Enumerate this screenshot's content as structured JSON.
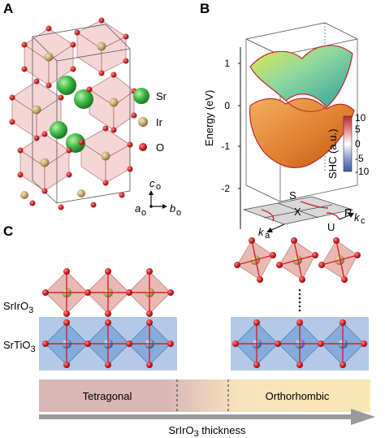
{
  "panels": {
    "a": {
      "letter": "A",
      "legend": [
        {
          "symbol": "Sr",
          "color": "#3fb845"
        },
        {
          "symbol": "Ir",
          "color": "#c8a86a"
        },
        {
          "symbol": "O",
          "color": "#d2232a"
        }
      ],
      "axes": {
        "c": "c",
        "a": "a",
        "b": "b",
        "sub": "o"
      }
    },
    "b": {
      "letter": "B",
      "ylabel": "Energy (eV)",
      "yticks": [
        "1",
        "0",
        "-1",
        "-2"
      ],
      "colorbar": {
        "label": "SHC (a.u.)",
        "ticks": [
          "10",
          "5",
          "0",
          "-5",
          "-10"
        ],
        "max_color": "#c0262d",
        "min_color": "#3a55a5"
      },
      "bz_labels": {
        "S": "S",
        "R": "R",
        "X": "X",
        "U": "U",
        "ka": "k",
        "ka_sub": "a",
        "kc": "k",
        "kc_sub": "c"
      }
    },
    "c": {
      "letter": "C",
      "layer_top": "SrIrO",
      "layer_top_sub": "3",
      "layer_bottom": "SrTiO",
      "layer_bottom_sub": "3",
      "phase_left": "Tetragonal",
      "phase_right": "Orthorhombic",
      "axis_label": "SrIrO",
      "axis_label_sub": "3",
      "axis_label_suffix": " thickness"
    }
  }
}
